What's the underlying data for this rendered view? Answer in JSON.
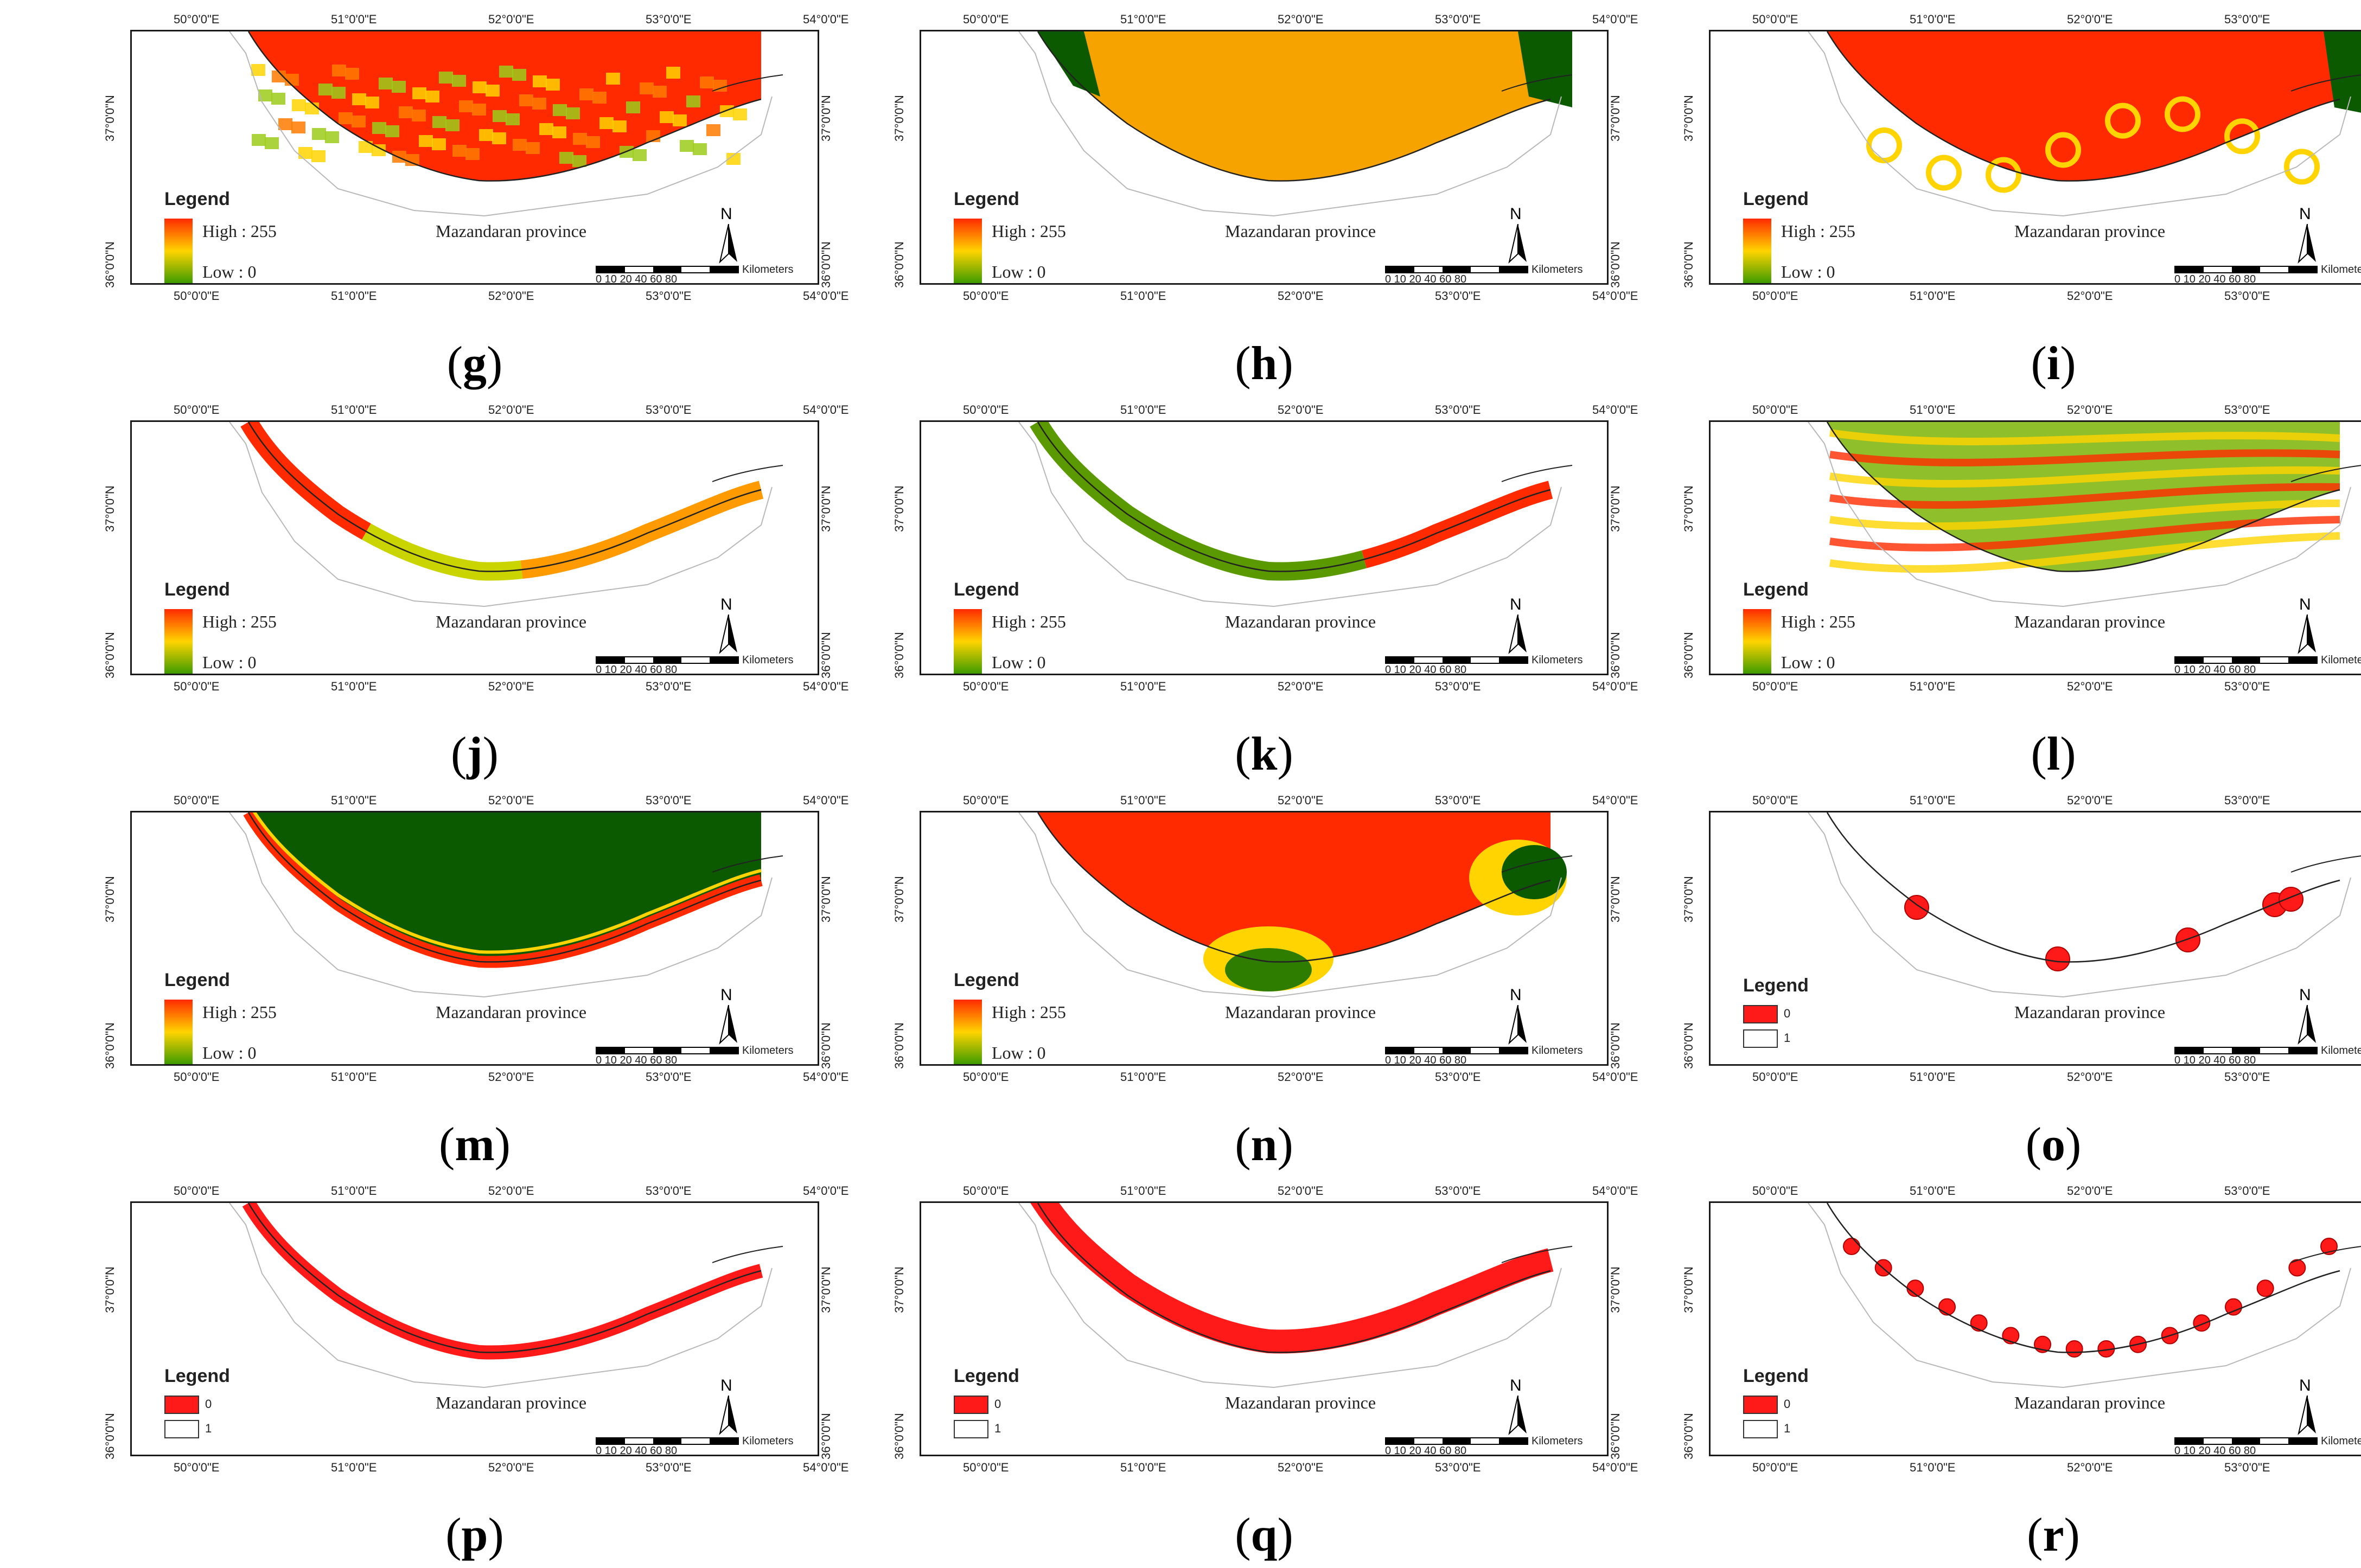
{
  "figure": {
    "labels": [
      "g",
      "h",
      "i",
      "j",
      "k",
      "l",
      "m",
      "n",
      "o",
      "p",
      "q",
      "r"
    ],
    "lon_ticks": [
      "50°0'0\"E",
      "51°0'0\"E",
      "52°0'0\"E",
      "53°0'0\"E",
      "54°0'0\"E"
    ],
    "lat_ticks": [
      "37°0'0\"N",
      "36°0'0\"N"
    ],
    "province": "Mazandaran province",
    "north": "N",
    "scale": {
      "unit": "Kilometers",
      "ticks": [
        "0",
        "10",
        "20",
        "40",
        "60",
        "80"
      ]
    },
    "legend_title": "Legend",
    "continuous_legend": {
      "high": "High : 255",
      "low": "Low : 0"
    },
    "binary_legend": {
      "zero": "0",
      "one": "1"
    }
  },
  "colors": {
    "high": "#ff2a00",
    "mid": "#ffd400",
    "low": "#2f7d00",
    "dark": "#0b5a00",
    "border": "#1a1a1a"
  },
  "panels": [
    {
      "id": "g",
      "legend": "continuous",
      "style": "noisy-high"
    },
    {
      "id": "h",
      "legend": "continuous",
      "style": "orange-field"
    },
    {
      "id": "i",
      "legend": "continuous",
      "style": "red-field"
    },
    {
      "id": "j",
      "legend": "continuous",
      "style": "coastal-band-mixed"
    },
    {
      "id": "k",
      "legend": "continuous",
      "style": "coastal-band-green"
    },
    {
      "id": "l",
      "legend": "continuous",
      "style": "striped-mixed"
    },
    {
      "id": "m",
      "legend": "continuous",
      "style": "green-with-red-rim"
    },
    {
      "id": "n",
      "legend": "continuous",
      "style": "red-with-green-lobes"
    },
    {
      "id": "o",
      "legend": "binary",
      "style": "spots-few"
    },
    {
      "id": "p",
      "legend": "binary",
      "style": "red-band"
    },
    {
      "id": "q",
      "legend": "binary",
      "style": "red-band-wide"
    },
    {
      "id": "r",
      "legend": "binary",
      "style": "spots-many"
    }
  ]
}
